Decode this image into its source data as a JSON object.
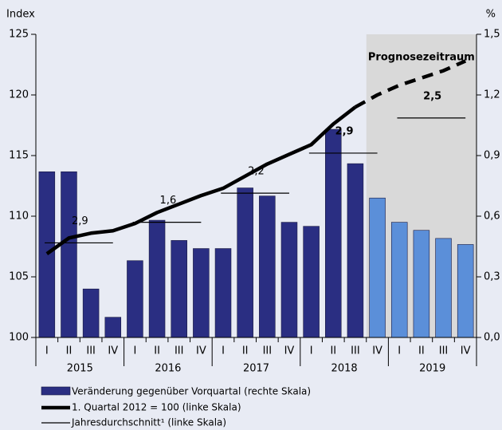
{
  "chart_data": {
    "type": "bar-line",
    "y_label": "Index",
    "y2_label": "%",
    "categories": [
      "I",
      "II",
      "III",
      "IV",
      "I",
      "II",
      "III",
      "IV",
      "I",
      "II",
      "III",
      "IV",
      "I",
      "II",
      "III",
      "IV",
      "I",
      "II",
      "III",
      "IV"
    ],
    "years": [
      "2015",
      "2016",
      "2017",
      "2018",
      "2019"
    ],
    "ylim": [
      100,
      125
    ],
    "yticks": [
      100,
      105,
      110,
      115,
      120,
      125
    ],
    "y2lim": [
      0,
      1.5
    ],
    "y2ticks": [
      {
        "value": 0,
        "label": "0,0"
      },
      {
        "value": 0.3,
        "label": "0,3"
      },
      {
        "value": 0.6,
        "label": "0,6"
      },
      {
        "value": 0.9,
        "label": "0,9"
      },
      {
        "value": 1.2,
        "label": "1,2"
      },
      {
        "value": 1.5,
        "label": "1,5"
      }
    ],
    "forecast_start": 15,
    "forecast_label": "Prognosezeitraum",
    "forecast_shade": "#d9d9d9",
    "series": [
      {
        "name": "Veränderung gegenüber Vorquartal (rechte Skala)",
        "axis": "y2",
        "color": "#2a2e82",
        "forecast_color": "#5b8fd9",
        "values": [
          0.82,
          0.82,
          0.24,
          0.1,
          0.38,
          0.58,
          0.48,
          0.44,
          0.44,
          0.74,
          0.7,
          0.57,
          0.55,
          1.03,
          0.86,
          0.69,
          0.57,
          0.53,
          0.49,
          0.46
        ]
      },
      {
        "name": "1. Quartal 2012 = 100 (linke Skala)",
        "color": "#000000",
        "dashed_from": 14,
        "values": [
          106.9,
          108.2,
          108.6,
          108.8,
          109.4,
          110.3,
          111.0,
          111.7,
          112.3,
          113.3,
          114.3,
          115.1,
          115.9,
          117.6,
          119.0,
          120.0,
          120.8,
          121.4,
          122.0,
          122.8
        ]
      }
    ],
    "annual_average": {
      "name": "Jahresdurchschnitt¹ (linke Skala)",
      "color": "#000000",
      "values": [
        107.8,
        109.5,
        111.9,
        115.2,
        118.1
      ],
      "labels": [
        "2,9",
        "1,6",
        "2,2",
        "2,9",
        "2,5"
      ],
      "bold_labels": [
        false,
        false,
        false,
        true,
        true
      ]
    }
  }
}
